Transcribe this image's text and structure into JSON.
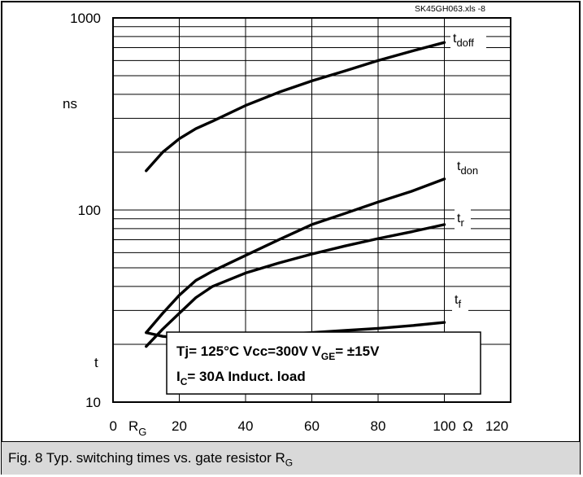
{
  "chart_data": {
    "type": "line",
    "file_tag": "SK45GH063.xls -8",
    "y_unit": "ns",
    "y_symbol": "t",
    "x_axis_name": "R",
    "x_axis_sub": "G",
    "x_unit": "Ω",
    "x_ticks": [
      "0",
      "20",
      "40",
      "60",
      "80",
      "100",
      "120"
    ],
    "y_ticks": [
      "10",
      "100",
      "1000"
    ],
    "xlim": [
      0,
      120
    ],
    "ylim": [
      10,
      1000
    ],
    "log_y": true,
    "grid": true,
    "annotation": {
      "line1_a": "Tj= 125°C   Vcc=300V  V",
      "line1_sub": "GE",
      "line1_b": "= ±15V",
      "line2_a": "I",
      "line2_sub": "C",
      "line2_b": "=  30A   Induct. load"
    },
    "series": [
      {
        "name": "t",
        "sub": "doff",
        "x": [
          10,
          15,
          20,
          25,
          30,
          40,
          50,
          60,
          70,
          80,
          90,
          100
        ],
        "y": [
          160,
          200,
          235,
          265,
          290,
          350,
          410,
          470,
          530,
          600,
          670,
          745
        ]
      },
      {
        "name": "t",
        "sub": "don",
        "x": [
          10,
          15,
          20,
          25,
          30,
          40,
          50,
          60,
          70,
          80,
          90,
          100
        ],
        "y": [
          23,
          29,
          36,
          43,
          48,
          58,
          70,
          84,
          96,
          110,
          125,
          145
        ]
      },
      {
        "name": "t",
        "sub": "r",
        "x": [
          10,
          15,
          20,
          25,
          30,
          40,
          50,
          60,
          70,
          80,
          90,
          100
        ],
        "y": [
          19.5,
          24,
          29,
          35,
          40,
          47,
          53,
          59,
          65,
          71,
          77,
          84
        ]
      },
      {
        "name": "t",
        "sub": "f",
        "x": [
          10,
          15,
          20,
          25,
          30,
          40,
          50,
          60,
          70,
          80,
          90,
          100
        ],
        "y": [
          23,
          22,
          21.6,
          21.6,
          21.7,
          22,
          22.5,
          23,
          23.6,
          24.2,
          25,
          26
        ]
      }
    ]
  },
  "caption": {
    "text": "Fig. 8 Typ. switching times vs. gate resistor R",
    "sub": "G"
  }
}
